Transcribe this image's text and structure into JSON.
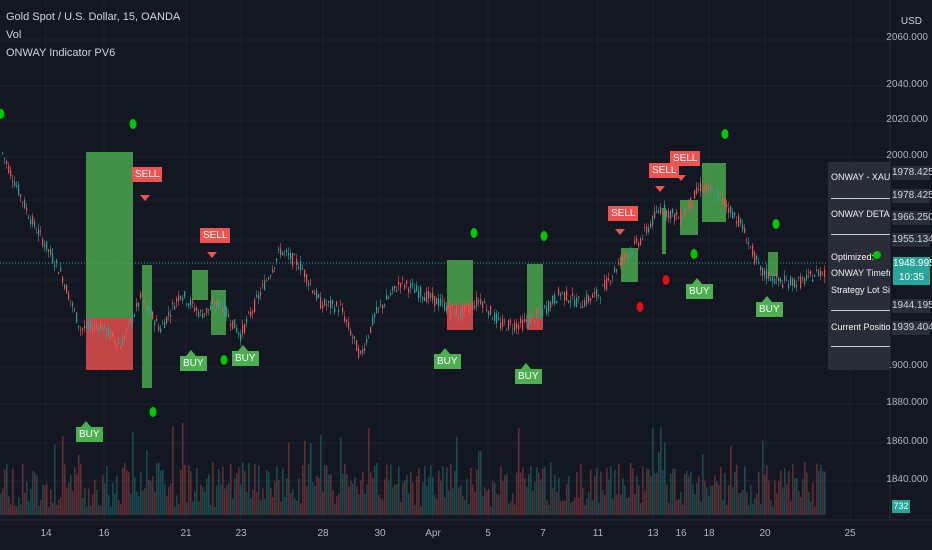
{
  "legend": {
    "symbol": "Gold Spot / U.S. Dollar, 15, OANDA",
    "vol": "Vol",
    "indicator": "ONWAY Indicator PV6"
  },
  "currency": "USD",
  "chart_data": {
    "type": "candlestick",
    "y_ticks": [
      "2060.000",
      "2040.000",
      "2020.000",
      "2000.000",
      "1900.000",
      "1880.000",
      "1860.000",
      "1840.000"
    ],
    "x_ticks": [
      "14",
      "16",
      "21",
      "23",
      "28",
      "30",
      "Apr",
      "5",
      "7",
      "11",
      "13",
      "16",
      "18",
      "20",
      "25"
    ],
    "price_path": [
      [
        0,
        2003
      ],
      [
        30,
        1970
      ],
      [
        60,
        1945
      ],
      [
        80,
        1918
      ],
      [
        100,
        1920
      ],
      [
        120,
        1910
      ],
      [
        140,
        1932
      ],
      [
        160,
        1918
      ],
      [
        180,
        1935
      ],
      [
        200,
        1925
      ],
      [
        220,
        1930
      ],
      [
        240,
        1915
      ],
      [
        260,
        1935
      ],
      [
        280,
        1955
      ],
      [
        300,
        1948
      ],
      [
        320,
        1930
      ],
      [
        340,
        1928
      ],
      [
        360,
        1905
      ],
      [
        375,
        1925
      ],
      [
        400,
        1940
      ],
      [
        420,
        1935
      ],
      [
        440,
        1930
      ],
      [
        460,
        1925
      ],
      [
        480,
        1932
      ],
      [
        500,
        1920
      ],
      [
        520,
        1920
      ],
      [
        540,
        1925
      ],
      [
        560,
        1935
      ],
      [
        580,
        1930
      ],
      [
        600,
        1935
      ],
      [
        620,
        1950
      ],
      [
        640,
        1960
      ],
      [
        660,
        1975
      ],
      [
        680,
        1970
      ],
      [
        700,
        1985
      ],
      [
        720,
        1980
      ],
      [
        740,
        1968
      ],
      [
        760,
        1945
      ],
      [
        780,
        1940
      ],
      [
        800,
        1940
      ],
      [
        820,
        1945
      ]
    ]
  },
  "signals": {
    "buy": [
      "BUY",
      "BUY",
      "BUY",
      "BUY",
      "BUY",
      "BUY",
      "BUY"
    ],
    "sell": [
      "SELL",
      "SELL",
      "SELL",
      "SELL",
      "SELL"
    ]
  },
  "panel": {
    "title": "ONWAY - XAUUSD",
    "details": "ONWAY DETAILS",
    "optimized": "Optimized:",
    "timeframe": "ONWAY Timeframe",
    "lot": "Strategy Lot Size:",
    "position": "Current Position: B"
  },
  "price_labels": [
    "1978.425",
    "1978.425",
    "1966.250",
    "1955.134",
    "1944.195",
    "1939.404"
  ],
  "current_price": "1948.995",
  "countdown": "10:35",
  "volume_value": "732",
  "colors": {
    "up": "#26a69a",
    "down": "#ef5350",
    "buy": "#4caf50",
    "sell": "#ef5350",
    "dot_green": "#00c800",
    "dot_red": "#e01010"
  }
}
